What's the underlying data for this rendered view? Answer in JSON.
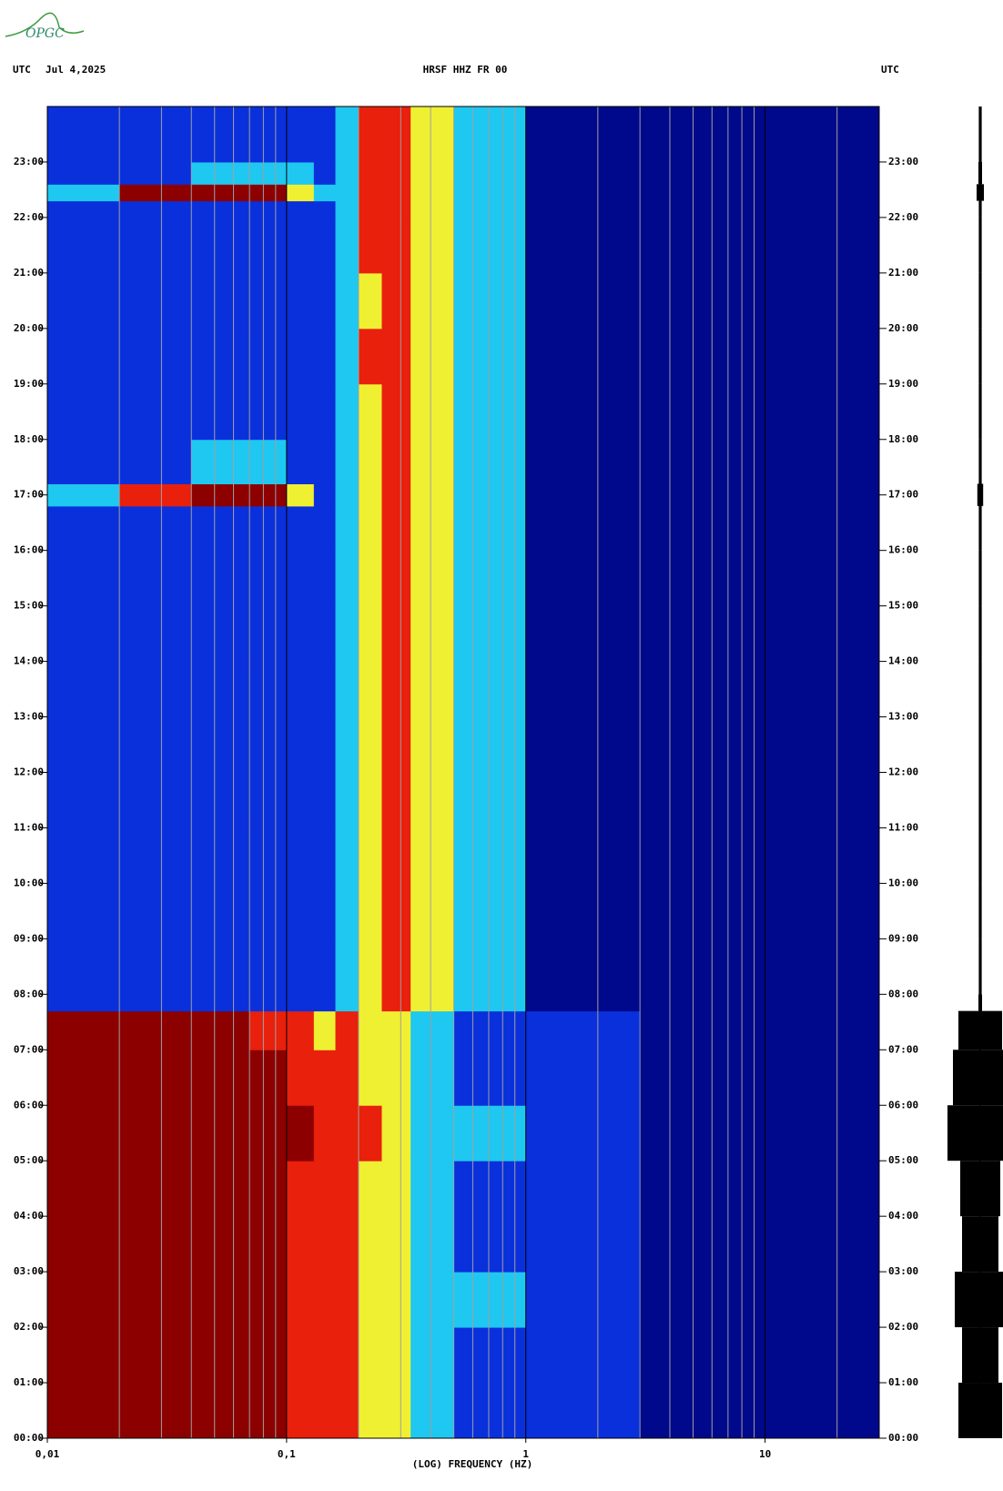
{
  "logo": "OPGC",
  "chart_data": {
    "type": "heatmap",
    "header_left_zone": "UTC",
    "header_date": "Jul 4,2025",
    "title": "HRSF HHZ FR 00",
    "header_right_zone": "UTC",
    "xlabel": "(LOG) FREQUENCY (HZ)",
    "xscale": "log",
    "xlim": [
      0.01,
      30
    ],
    "xticks": [
      {
        "value": 0.01,
        "label": "0,01"
      },
      {
        "value": 0.1,
        "label": "0,1"
      },
      1,
      10
    ],
    "xminorticks": [
      0.02,
      0.03,
      0.04,
      0.05,
      0.06,
      0.07,
      0.08,
      0.09,
      0.2,
      0.3,
      0.4,
      0.5,
      0.6,
      0.7,
      0.8,
      0.9,
      2,
      3,
      4,
      5,
      6,
      7,
      8,
      9,
      20
    ],
    "ylim": [
      0,
      24
    ],
    "yticks": [
      {
        "value": 0,
        "label": "00:00"
      },
      {
        "value": 1,
        "label": "01:00"
      },
      {
        "value": 2,
        "label": "02:00"
      },
      {
        "value": 3,
        "label": "03:00"
      },
      {
        "value": 4,
        "label": "04:00"
      },
      {
        "value": 5,
        "label": "05:00"
      },
      {
        "value": 6,
        "label": "06:00"
      },
      {
        "value": 7,
        "label": "07:00"
      },
      {
        "value": 8,
        "label": "08:00"
      },
      {
        "value": 9,
        "label": "09:00"
      },
      {
        "value": 10,
        "label": "10:00"
      },
      {
        "value": 11,
        "label": "11:00"
      },
      {
        "value": 12,
        "label": "12:00"
      },
      {
        "value": 13,
        "label": "13:00"
      },
      {
        "value": 14,
        "label": "14:00"
      },
      {
        "value": 15,
        "label": "15:00"
      },
      {
        "value": 16,
        "label": "16:00"
      },
      {
        "value": 17,
        "label": "17:00"
      },
      {
        "value": 18,
        "label": "18:00"
      },
      {
        "value": 19,
        "label": "19:00"
      },
      {
        "value": 20,
        "label": "20:00"
      },
      {
        "value": 21,
        "label": "21:00"
      },
      {
        "value": 22,
        "label": "22:00"
      },
      {
        "value": 23,
        "label": "23:00"
      }
    ],
    "xbins": [
      0.01,
      0.02,
      0.04,
      0.07,
      0.1,
      0.13,
      0.16,
      0.2,
      0.25,
      0.33,
      0.5,
      1,
      3,
      30
    ],
    "ybins": [
      0,
      1,
      2,
      3,
      4,
      5,
      6,
      7,
      7.7,
      8,
      9,
      10,
      11,
      12,
      13,
      14,
      15,
      16,
      16.8,
      17.2,
      18,
      19,
      20,
      21,
      22,
      22.3,
      22.6,
      23,
      24
    ],
    "colors": [
      "#00088c",
      "#0a30dc",
      "#1ec8f0",
      "#f0f032",
      "#e8200c",
      "#8c0000"
    ],
    "z": [
      [
        5,
        5,
        5,
        5,
        4,
        4,
        4,
        3,
        3,
        2,
        1,
        1,
        0
      ],
      [
        5,
        5,
        5,
        5,
        4,
        4,
        4,
        3,
        3,
        2,
        1,
        1,
        0
      ],
      [
        5,
        5,
        5,
        5,
        4,
        4,
        4,
        3,
        3,
        2,
        2,
        1,
        0
      ],
      [
        5,
        5,
        5,
        5,
        4,
        4,
        4,
        3,
        3,
        2,
        1,
        1,
        0
      ],
      [
        5,
        5,
        5,
        5,
        4,
        4,
        4,
        3,
        3,
        2,
        1,
        1,
        0
      ],
      [
        5,
        5,
        5,
        5,
        5,
        4,
        4,
        4,
        3,
        2,
        2,
        1,
        0
      ],
      [
        5,
        5,
        5,
        5,
        4,
        4,
        4,
        3,
        3,
        2,
        1,
        1,
        0
      ],
      [
        5,
        5,
        5,
        4,
        4,
        3,
        4,
        3,
        3,
        2,
        1,
        1,
        0
      ],
      [
        1,
        1,
        1,
        1,
        1,
        1,
        2,
        3,
        4,
        3,
        2,
        0,
        0
      ],
      [
        1,
        1,
        1,
        1,
        1,
        1,
        2,
        3,
        4,
        3,
        2,
        0,
        0
      ],
      [
        1,
        1,
        1,
        1,
        1,
        1,
        2,
        3,
        4,
        3,
        2,
        0,
        0
      ],
      [
        1,
        1,
        1,
        1,
        1,
        1,
        2,
        3,
        4,
        3,
        2,
        0,
        0
      ],
      [
        1,
        1,
        1,
        1,
        1,
        1,
        2,
        3,
        4,
        3,
        2,
        0,
        0
      ],
      [
        1,
        1,
        1,
        1,
        1,
        1,
        2,
        3,
        4,
        3,
        2,
        0,
        0
      ],
      [
        1,
        1,
        1,
        1,
        1,
        1,
        2,
        3,
        4,
        3,
        2,
        0,
        0
      ],
      [
        1,
        1,
        1,
        1,
        1,
        1,
        2,
        3,
        4,
        3,
        2,
        0,
        0
      ],
      [
        1,
        1,
        1,
        1,
        1,
        1,
        2,
        3,
        4,
        3,
        2,
        0,
        0
      ],
      [
        1,
        1,
        1,
        1,
        1,
        1,
        2,
        3,
        4,
        3,
        2,
        0,
        0
      ],
      [
        2,
        4,
        5,
        5,
        3,
        1,
        2,
        3,
        4,
        3,
        2,
        0,
        0
      ],
      [
        1,
        1,
        2,
        2,
        1,
        1,
        2,
        3,
        4,
        3,
        2,
        0,
        0
      ],
      [
        1,
        1,
        1,
        1,
        1,
        1,
        2,
        3,
        4,
        3,
        2,
        0,
        0
      ],
      [
        1,
        1,
        1,
        1,
        1,
        1,
        2,
        4,
        4,
        3,
        2,
        0,
        0
      ],
      [
        1,
        1,
        1,
        1,
        1,
        1,
        2,
        3,
        4,
        3,
        2,
        0,
        0
      ],
      [
        1,
        1,
        1,
        1,
        1,
        1,
        2,
        4,
        4,
        3,
        2,
        0,
        0
      ],
      [
        1,
        1,
        1,
        1,
        1,
        1,
        2,
        4,
        4,
        3,
        2,
        0,
        0
      ],
      [
        2,
        5,
        5,
        5,
        3,
        2,
        2,
        4,
        4,
        3,
        2,
        0,
        0
      ],
      [
        1,
        1,
        2,
        2,
        2,
        1,
        2,
        4,
        4,
        3,
        2,
        0,
        0
      ],
      [
        1,
        1,
        1,
        1,
        1,
        1,
        2,
        4,
        4,
        3,
        2,
        0,
        0
      ]
    ],
    "trace": [
      0.6,
      0.5,
      0.7,
      0.5,
      0.55,
      0.9,
      0.75,
      0.6,
      0.05,
      0.04,
      0.04,
      0.04,
      0.04,
      0.04,
      0.04,
      0.04,
      0.04,
      0.04,
      0.08,
      0.04,
      0.04,
      0.04,
      0.04,
      0.04,
      0.04,
      0.1,
      0.05,
      0.04
    ]
  }
}
